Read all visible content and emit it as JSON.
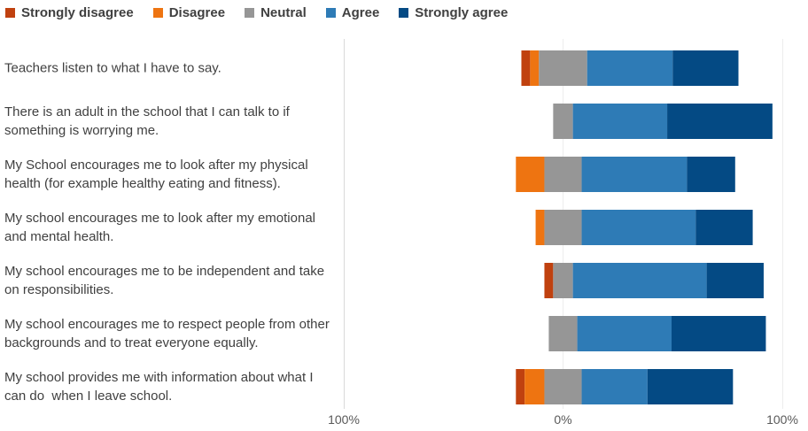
{
  "chart_data": {
    "type": "bar",
    "subtype": "diverging-stacked-horizontal",
    "title": "",
    "xlabel": "",
    "ylabel": "",
    "xlim": [
      -100,
      100
    ],
    "x_ticks": [
      "100%",
      "0%",
      "100%"
    ],
    "legend_position": "top-left",
    "grid": true,
    "categories": [
      "Teachers listen to what I have to say.",
      "There is an adult in the school that I can talk to if something is worrying me.",
      "My School encourages me to look after my physical health (for example healthy eating and fitness).",
      "My school encourages me to look after my emotional and mental health.",
      "My school encourages me to be independent and take on responsibilities.",
      "My school encourages me to respect people from other backgrounds and to treat everyone equally.",
      "My school provides me with information about what I can do  when I leave school."
    ],
    "series": [
      {
        "name": "Strongly disagree",
        "color": "#C0410F",
        "values": [
          4,
          0,
          0,
          0,
          4,
          0,
          4
        ]
      },
      {
        "name": "Disagree",
        "color": "#EE7411",
        "values": [
          4,
          0,
          13,
          4,
          0,
          0,
          9
        ]
      },
      {
        "name": "Neutral",
        "color": "#969696",
        "values": [
          22,
          9,
          17,
          17,
          9,
          13,
          17
        ]
      },
      {
        "name": "Agree",
        "color": "#2E7BB6",
        "values": [
          39,
          43,
          48,
          52,
          61,
          43,
          30
        ]
      },
      {
        "name": "Strongly agree",
        "color": "#044A84",
        "values": [
          30,
          48,
          22,
          26,
          26,
          43,
          39
        ]
      }
    ],
    "neutral_split": "centered"
  }
}
